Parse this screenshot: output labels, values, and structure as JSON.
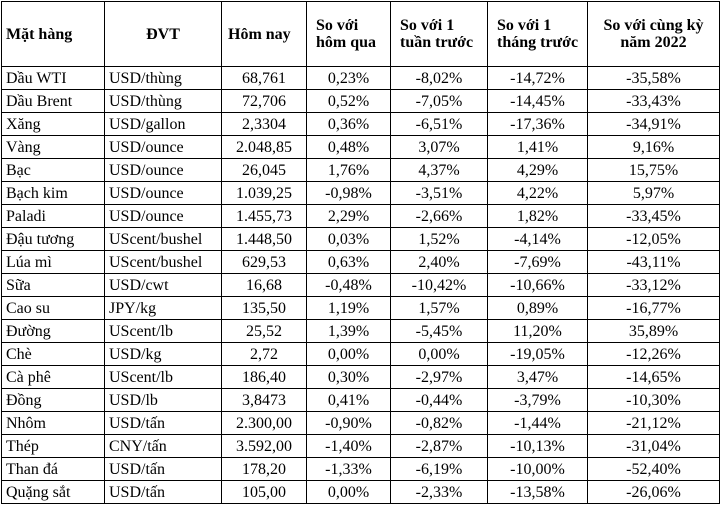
{
  "table": {
    "headers": [
      "Mặt hàng",
      "ĐVT",
      "Hôm nay",
      "So với hôm qua",
      "So với 1 tuần trước",
      "So với 1 tháng trước",
      "So với cùng kỳ năm 2022"
    ],
    "rows": [
      [
        "Dầu WTI",
        "USD/thùng",
        "68,761",
        "0,23%",
        "-8,02%",
        "-14,72%",
        "-35,58%"
      ],
      [
        "Dầu Brent",
        "USD/thùng",
        "72,706",
        "0,52%",
        "-7,05%",
        "-14,45%",
        "-33,43%"
      ],
      [
        "Xăng",
        "USD/gallon",
        "2,3304",
        "0,36%",
        "-6,51%",
        "-17,36%",
        "-34,91%"
      ],
      [
        "Vàng",
        "USD/ounce",
        "2.048,85",
        "0,48%",
        "3,07%",
        "1,41%",
        "9,16%"
      ],
      [
        "Bạc",
        "USD/ounce",
        "26,045",
        "1,76%",
        "4,37%",
        "4,29%",
        "15,75%"
      ],
      [
        "Bạch kim",
        "USD/ounce",
        "1.039,25",
        "-0,98%",
        "-3,51%",
        "4,22%",
        "5,97%"
      ],
      [
        "Paladi",
        "USD/ounce",
        "1.455,73",
        "2,29%",
        "-2,66%",
        "1,82%",
        "-33,45%"
      ],
      [
        "Đậu tương",
        "UScent/bushel",
        "1.448,50",
        "0,03%",
        "1,52%",
        "-4,14%",
        "-12,05%"
      ],
      [
        "Lúa mì",
        "UScent/bushel",
        "629,53",
        "0,63%",
        "2,40%",
        "-7,69%",
        "-43,11%"
      ],
      [
        "Sữa",
        "USD/cwt",
        "16,68",
        "-0,48%",
        "-10,42%",
        "-10,66%",
        "-33,12%"
      ],
      [
        "Cao su",
        "JPY/kg",
        "135,50",
        "1,19%",
        "1,57%",
        "0,89%",
        "-16,77%"
      ],
      [
        "Đường",
        "UScent/lb",
        "25,52",
        "1,39%",
        "-5,45%",
        "11,20%",
        "35,89%"
      ],
      [
        "Chè",
        "USD/kg",
        "2,72",
        "0,00%",
        "0,00%",
        "-19,05%",
        "-12,26%"
      ],
      [
        "Cà phê",
        "UScent/lb",
        "186,40",
        "0,30%",
        "-2,97%",
        "3,47%",
        "-14,65%"
      ],
      [
        "Đồng",
        "USD/lb",
        "3,8473",
        "0,41%",
        "-0,44%",
        "-3,79%",
        "-10,30%"
      ],
      [
        "Nhôm",
        "USD/tấn",
        "2.300,00",
        "-0,90%",
        "-0,82%",
        "-1,44%",
        "-21,12%"
      ],
      [
        "Thép",
        "CNY/tấn",
        "3.592,00",
        "-1,40%",
        "-2,87%",
        "-10,13%",
        "-31,04%"
      ],
      [
        "Than đá",
        "USD/tấn",
        "178,20",
        "-1,33%",
        "-6,19%",
        "-10,00%",
        "-52,40%"
      ],
      [
        "Quặng sắt",
        "USD/tấn",
        "105,00",
        "0,00%",
        "-2,33%",
        "-13,58%",
        "-26,06%"
      ]
    ]
  }
}
